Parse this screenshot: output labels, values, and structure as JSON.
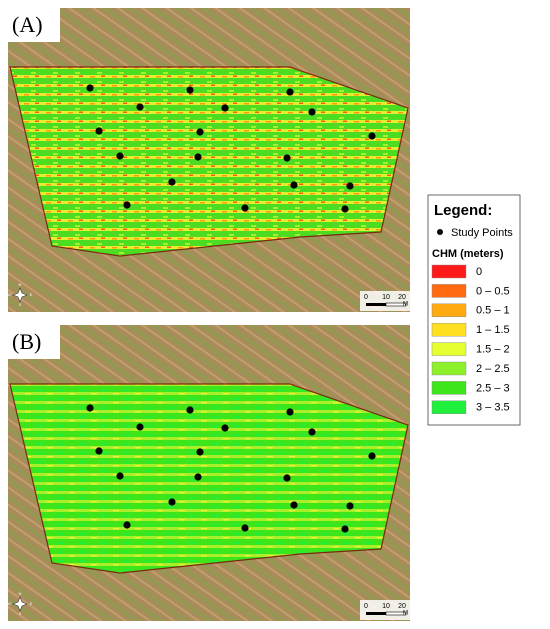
{
  "panels": [
    {
      "label": "(A)",
      "scale_bar": {
        "labels": [
          "0",
          "10",
          "20"
        ],
        "unit": "M"
      },
      "compass": [
        "N",
        "E",
        "S",
        "W"
      ]
    },
    {
      "label": "(B)",
      "scale_bar": {
        "labels": [
          "0",
          "10",
          "20"
        ],
        "unit": "M"
      },
      "compass": [
        "N",
        "E",
        "S",
        "W"
      ]
    }
  ],
  "legend": {
    "title": "Legend:",
    "points_label": "Study Points",
    "chm_title": "CHM (meters)",
    "classes": [
      {
        "label": "0",
        "color": "#ff1a1a"
      },
      {
        "label": "0 – 0.5",
        "color": "#ff6a10"
      },
      {
        "label": "0.5 – 1",
        "color": "#ffaa10"
      },
      {
        "label": "1 – 1.5",
        "color": "#ffe020"
      },
      {
        "label": "1.5 – 2",
        "color": "#e6ff30"
      },
      {
        "label": "2 – 2.5",
        "color": "#8cf02a"
      },
      {
        "label": "2.5 – 3",
        "color": "#3ce61a"
      },
      {
        "label": "3 – 3.5",
        "color": "#1ef03c"
      }
    ]
  }
}
